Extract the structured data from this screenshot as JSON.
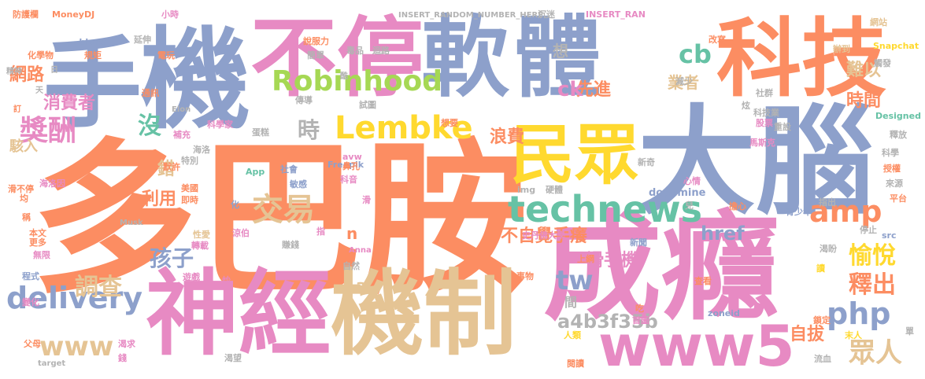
{
  "palette": {
    "salmon": "#fc8d62",
    "blue": "#8da0cb",
    "pink": "#e78ac3",
    "lime": "#a6d854",
    "yellow": "#ffd92f",
    "tan": "#e5c494",
    "grey": "#b3b3b3",
    "teal": "#66c2a5"
  },
  "words": [
    {
      "text": "多巴胺",
      "color": "salmon"
    },
    {
      "text": "機",
      "color": "blue"
    },
    {
      "text": "手",
      "color": "blue"
    },
    {
      "text": "不停",
      "color": "pink"
    },
    {
      "text": "軟",
      "color": "blue"
    },
    {
      "text": "體",
      "color": "blue"
    },
    {
      "text": "科技",
      "color": "salmon"
    },
    {
      "text": "大腦",
      "color": "blue"
    },
    {
      "text": "成癮",
      "color": "pink"
    },
    {
      "text": "神經",
      "color": "pink"
    },
    {
      "text": "機制",
      "color": "tan"
    },
    {
      "text": "民眾",
      "color": "yellow"
    },
    {
      "text": "www5",
      "color": "pink"
    },
    {
      "text": "Robinhood",
      "color": "lime"
    },
    {
      "text": "Lembke",
      "color": "yellow"
    },
    {
      "text": "cb",
      "color": "teal"
    },
    {
      "text": "technews",
      "color": "teal"
    },
    {
      "text": "amp",
      "color": "salmon"
    },
    {
      "text": "delivery",
      "color": "blue"
    },
    {
      "text": "交易",
      "color": "tan"
    },
    {
      "text": "獎酬",
      "color": "pink"
    },
    {
      "text": "消費者",
      "color": "pink"
    },
    {
      "text": "網路",
      "color": "salmon"
    },
    {
      "text": "沒",
      "color": "teal"
    },
    {
      "text": "時",
      "color": "grey"
    },
    {
      "text": "孩子",
      "color": "blue"
    },
    {
      "text": "調查",
      "color": "tan"
    },
    {
      "text": "www",
      "color": "tan"
    },
    {
      "text": "tw",
      "color": "blue"
    },
    {
      "text": "php",
      "color": "blue"
    },
    {
      "text": "愉悅",
      "color": "yellow"
    },
    {
      "text": "釋出",
      "color": "salmon"
    },
    {
      "text": "眾人",
      "color": "tan"
    },
    {
      "text": "自拔",
      "color": "salmon"
    },
    {
      "text": "href",
      "color": "blue"
    },
    {
      "text": "a4b3f35b",
      "color": "grey"
    },
    {
      "text": "不自覺手癢",
      "color": "salmon"
    },
    {
      "text": "滑手機",
      "color": "pink"
    },
    {
      "text": "浪費",
      "color": "salmon"
    },
    {
      "text": "利用",
      "color": "salmon"
    },
    {
      "text": "先進",
      "color": "salmon"
    },
    {
      "text": "業者",
      "color": "tan"
    },
    {
      "text": "難以",
      "color": "tan"
    },
    {
      "text": "時間",
      "color": "salmon"
    },
    {
      "text": "ck",
      "color": "pink"
    },
    {
      "text": "錯",
      "color": "tan"
    },
    {
      "text": "想",
      "color": "grey"
    },
    {
      "text": "駭入",
      "color": "tan"
    },
    {
      "text": "間",
      "color": "grey"
    },
    {
      "text": "n",
      "color": "salmon"
    },
    {
      "text": "a",
      "color": "tan"
    },
    {
      "text": "防護欄",
      "color": "salmon"
    },
    {
      "text": "MoneyDJ",
      "color": "salmon"
    },
    {
      "text": "小時",
      "color": "pink"
    },
    {
      "text": "INSERT_RANDOM_NUMBER_HERE",
      "color": "grey"
    },
    {
      "text": "沉迷",
      "color": "grey"
    },
    {
      "text": "INSERT_RAN",
      "color": "pink"
    },
    {
      "text": "網站",
      "color": "tan"
    },
    {
      "text": "_blank",
      "color": "blue"
    },
    {
      "text": "延伸",
      "color": "grey"
    },
    {
      "text": "說服力",
      "color": "salmon"
    },
    {
      "text": "迴路",
      "color": "grey"
    },
    {
      "text": "辦到",
      "color": "tan"
    },
    {
      "text": "Snapchat",
      "color": "yellow"
    },
    {
      "text": "化學物",
      "color": "salmon"
    },
    {
      "text": "規矩",
      "color": "salmon"
    },
    {
      "text": "電玩",
      "color": "salmon"
    },
    {
      "text": "毒品",
      "color": "grey"
    },
    {
      "text": "簡單",
      "color": "grey"
    },
    {
      "text": "改寫",
      "color": "salmon"
    },
    {
      "text": "精神",
      "color": "grey"
    },
    {
      "text": "日",
      "color": "grey"
    },
    {
      "text": "酷",
      "color": "grey"
    },
    {
      "text": "觸發",
      "color": "grey"
    },
    {
      "text": "減少",
      "color": "grey"
    },
    {
      "text": "天",
      "color": "grey"
    },
    {
      "text": "通訊",
      "color": "salmon"
    },
    {
      "text": "試圖",
      "color": "grey"
    },
    {
      "text": "炫",
      "color": "grey"
    },
    {
      "text": "社群",
      "color": "grey"
    },
    {
      "text": "訂",
      "color": "salmon"
    },
    {
      "text": "傳導",
      "color": "grey"
    },
    {
      "text": "Elon",
      "color": "grey"
    },
    {
      "text": "科技業",
      "color": "grey"
    },
    {
      "text": "科學家",
      "color": "pink"
    },
    {
      "text": "補充",
      "color": "pink"
    },
    {
      "text": "想要",
      "color": "salmon"
    },
    {
      "text": "重設",
      "color": "grey"
    },
    {
      "text": "股票",
      "color": "pink"
    },
    {
      "text": "Designed",
      "color": "teal"
    },
    {
      "text": "蛋糕",
      "color": "grey"
    },
    {
      "text": "馬斯克",
      "color": "pink"
    },
    {
      "text": "釋放",
      "color": "grey"
    },
    {
      "text": "海洛",
      "color": "grey"
    },
    {
      "text": "特別",
      "color": "grey"
    },
    {
      "text": "Freepik",
      "color": "blue"
    },
    {
      "text": "新奇",
      "color": "grey"
    },
    {
      "text": "科學",
      "color": "grey"
    },
    {
      "text": "默許",
      "color": "salmon"
    },
    {
      "text": "社會",
      "color": "blue"
    },
    {
      "text": "avw",
      "color": "pink"
    },
    {
      "text": "鼻孔",
      "color": "salmon"
    },
    {
      "text": "App",
      "color": "teal"
    },
    {
      "text": "海洛因",
      "color": "pink"
    },
    {
      "text": "敏感",
      "color": "blue"
    },
    {
      "text": "科音",
      "color": "pink"
    },
    {
      "text": "心情",
      "color": "pink"
    },
    {
      "text": "滑不停",
      "color": "salmon"
    },
    {
      "text": "美國",
      "color": "salmon"
    },
    {
      "text": "均",
      "color": "salmon"
    },
    {
      "text": "即時",
      "color": "salmon"
    },
    {
      "text": "img",
      "color": "grey"
    },
    {
      "text": "硬體",
      "color": "grey"
    },
    {
      "text": "dopamine",
      "color": "blue"
    },
    {
      "text": "來源",
      "color": "grey"
    },
    {
      "text": "平台",
      "color": "salmon"
    },
    {
      "text": "滑",
      "color": "pink"
    },
    {
      "text": "兒",
      "color": "grey"
    },
    {
      "text": "擔心",
      "color": "salmon"
    },
    {
      "text": "化",
      "color": "blue"
    },
    {
      "text": "指出",
      "color": "grey"
    },
    {
      "text": "稱",
      "color": "salmon"
    },
    {
      "text": "青少年",
      "color": "blue"
    },
    {
      "text": "Musk",
      "color": "grey"
    },
    {
      "text": "性愛",
      "color": "tan"
    },
    {
      "text": "涼伯",
      "color": "pink"
    },
    {
      "text": "本文",
      "color": "salmon"
    },
    {
      "text": "停止",
      "color": "grey"
    },
    {
      "text": "src",
      "color": "blue"
    },
    {
      "text": "更多",
      "color": "salmon"
    },
    {
      "text": "指",
      "color": "pink"
    },
    {
      "text": "轉載",
      "color": "pink"
    },
    {
      "text": "賺錢",
      "color": "grey"
    },
    {
      "text": "史丹佛大學",
      "color": "pink"
    },
    {
      "text": "渴盼",
      "color": "grey"
    },
    {
      "text": "無限",
      "color": "pink"
    },
    {
      "text": "Anna",
      "color": "pink"
    },
    {
      "text": "上網",
      "color": "salmon"
    },
    {
      "text": "新聞",
      "color": "blue"
    },
    {
      "text": "程式",
      "color": "blue"
    },
    {
      "text": "遊戲",
      "color": "pink"
    },
    {
      "text": "炒",
      "color": "pink"
    },
    {
      "text": "自然",
      "color": "grey"
    },
    {
      "text": "事物",
      "color": "salmon"
    },
    {
      "text": "讀",
      "color": "yellow"
    },
    {
      "text": "查看",
      "color": "salmon"
    },
    {
      "text": "變化",
      "color": "pink"
    },
    {
      "text": "吃",
      "color": "salmon"
    },
    {
      "text": "首圖",
      "color": "pink"
    },
    {
      "text": "zoneid",
      "color": "blue"
    },
    {
      "text": "鎖定",
      "color": "salmon"
    },
    {
      "text": "父母",
      "color": "salmon"
    },
    {
      "text": "渴求",
      "color": "pink"
    },
    {
      "text": "人類",
      "color": "yellow"
    },
    {
      "text": "末人",
      "color": "yellow"
    },
    {
      "text": "錢",
      "color": "pink"
    },
    {
      "text": "渴望",
      "color": "grey"
    },
    {
      "text": "流血",
      "color": "grey"
    },
    {
      "text": "target",
      "color": "grey"
    },
    {
      "text": "閱讀",
      "color": "salmon"
    },
    {
      "text": "單",
      "color": "grey"
    },
    {
      "text": "授權",
      "color": "salmon"
    }
  ]
}
